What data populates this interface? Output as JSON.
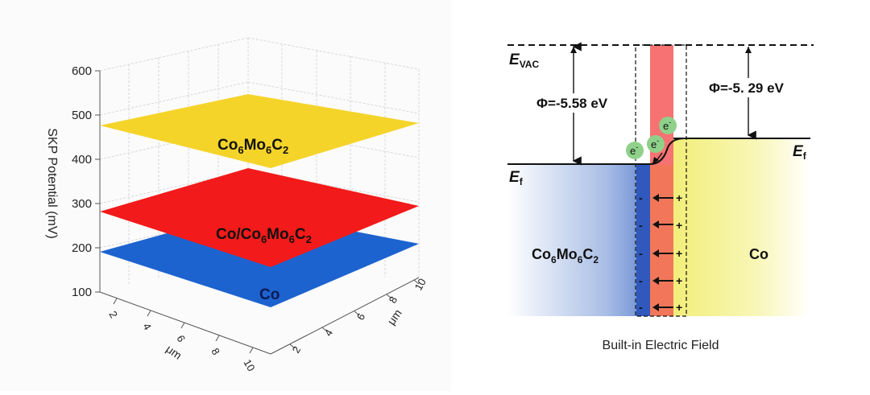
{
  "surface_plot": {
    "z_axis_title": "SKP Potential (mV)",
    "z_ticks": [
      "100",
      "200",
      "300",
      "400",
      "500",
      "600"
    ],
    "x_axis_title": "μm",
    "x_ticks": [
      "2",
      "4",
      "6",
      "8",
      "10"
    ],
    "y_axis_title": "μm",
    "y_ticks": [
      "2",
      "4",
      "6",
      "8",
      "10"
    ],
    "planes": [
      {
        "label_main": "Co",
        "sub1": "6",
        "mid": "Mo",
        "sub2": "6",
        "end": "C",
        "sub3": "2",
        "color": "#f5d42a",
        "potential_mv": 470
      },
      {
        "label_prefix": "Co/",
        "label_main": "Co",
        "sub1": "6",
        "mid": "Mo",
        "sub2": "6",
        "end": "C",
        "sub3": "2",
        "color": "#f21a1a",
        "potential_mv": 275
      },
      {
        "label": "Co",
        "color": "#1d63cf",
        "potential_mv": 185
      }
    ]
  },
  "band_diagram": {
    "evac_label_main": "E",
    "evac_label_sub": "VAC",
    "ef_label_main": "E",
    "ef_label_sub": "f",
    "phi_left": "Φ=-5.58 eV",
    "phi_right": "Φ=-5. 29 eV",
    "electron_label": "e",
    "electron_sup": "-",
    "left_material": {
      "main": "Co",
      "sub1": "6",
      "mid": "Mo",
      "sub2": "6",
      "end": "C",
      "sub3": "2"
    },
    "right_material": "Co",
    "minus_sign": "-",
    "plus_sign": "+",
    "field_caption": "Built-in Electric Field",
    "colors": {
      "left_block": "#3a66c2",
      "right_block": "#f6f59a",
      "interface_band": "#f47060"
    }
  }
}
